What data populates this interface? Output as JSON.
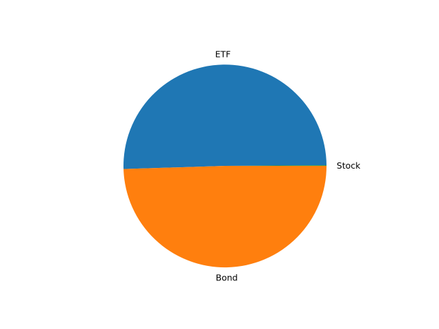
{
  "chart_data": {
    "type": "pie",
    "title": "",
    "labels": [
      "Stock",
      "ETF",
      "Bond"
    ],
    "values": [
      0.1,
      50.4,
      49.5
    ],
    "colors": [
      "#2ca02c",
      "#1f77b4",
      "#ff7f0e"
    ],
    "start_angle_deg": 0,
    "direction": "counterclockwise",
    "legend": "none"
  }
}
